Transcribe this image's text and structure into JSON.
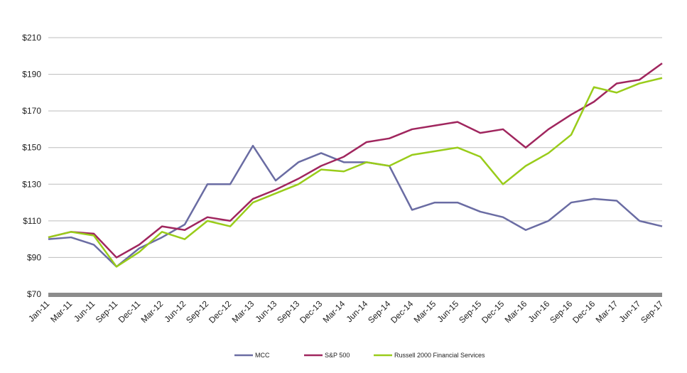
{
  "chart_data": {
    "type": "line",
    "categories": [
      "Jan-11",
      "Mar-11",
      "Jun-11",
      "Sep-11",
      "Dec-11",
      "Mar-12",
      "Jun-12",
      "Sep-12",
      "Dec-12",
      "Mar-13",
      "Jun-13",
      "Sep-13",
      "Dec-13",
      "Mar-14",
      "Jun-14",
      "Sep-14",
      "Dec-14",
      "Mar-15",
      "Jun-15",
      "Sep-15",
      "Dec-15",
      "Mar-16",
      "Jun-16",
      "Sep-16",
      "Dec-16",
      "Mar-17",
      "Jun-17",
      "Sep-17"
    ],
    "series": [
      {
        "name": "MCC",
        "color": "#6a6ca3",
        "values": [
          100,
          101,
          97,
          85,
          95,
          101,
          108,
          130,
          130,
          151,
          132,
          142,
          147,
          142,
          142,
          140,
          116,
          120,
          120,
          115,
          112,
          105,
          110,
          120,
          122,
          121,
          110,
          107
        ]
      },
      {
        "name": "S&P 500",
        "color": "#a0265e",
        "values": [
          101,
          104,
          103,
          90,
          97,
          107,
          105,
          112,
          110,
          122,
          127,
          133,
          140,
          145,
          153,
          155,
          160,
          162,
          164,
          158,
          160,
          150,
          160,
          168,
          175,
          185,
          187,
          196
        ]
      },
      {
        "name": "Russell 2000 Financial Services",
        "color": "#99cc1a",
        "values": [
          101,
          104,
          102,
          85,
          93,
          104,
          100,
          110,
          107,
          120,
          125,
          130,
          138,
          137,
          142,
          140,
          146,
          148,
          150,
          145,
          130,
          140,
          147,
          157,
          183,
          180,
          185,
          188
        ]
      }
    ],
    "ylim": [
      70,
      210
    ],
    "yticks": [
      {
        "value": 70,
        "label": "$70"
      },
      {
        "value": 90,
        "label": "$90"
      },
      {
        "value": 110,
        "label": "$110"
      },
      {
        "value": 130,
        "label": "$130"
      },
      {
        "value": 150,
        "label": "$150"
      },
      {
        "value": 170,
        "label": "$170"
      },
      {
        "value": 190,
        "label": "$190"
      },
      {
        "value": 210,
        "label": "$210"
      }
    ],
    "grid": true
  }
}
